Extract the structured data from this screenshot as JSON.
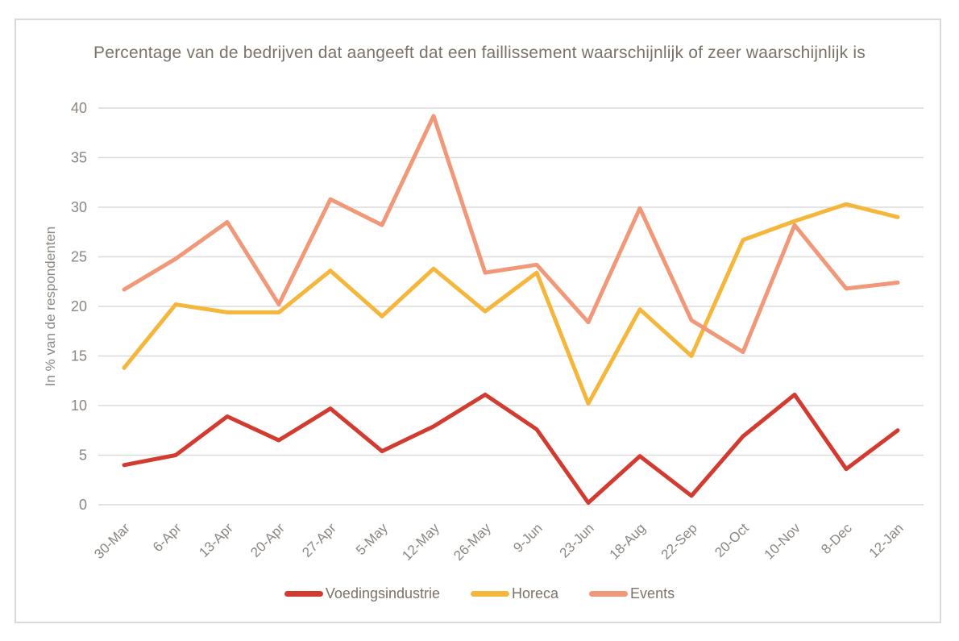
{
  "chart_data": {
    "type": "line",
    "title": "Percentage van de bedrijven dat aangeeft dat een faillissement waarschijnlijk of zeer waarschijnlijk is",
    "xlabel": "",
    "ylabel": "In % van de respondenten",
    "ylim": [
      0,
      40
    ],
    "yticks": [
      0,
      5,
      10,
      15,
      20,
      25,
      30,
      35,
      40
    ],
    "grid": true,
    "legend_position": "bottom",
    "categories": [
      "30-Mar",
      "6-Apr",
      "13-Apr",
      "20-Apr",
      "27-Apr",
      "5-May",
      "12-May",
      "26-May",
      "9-Jun",
      "23-Jun",
      "18-Aug",
      "22-Sep",
      "20-Oct",
      "10-Nov",
      "8-Dec",
      "12-Jan"
    ],
    "series": [
      {
        "name": "Voedingsindustrie",
        "color": "#d23b30",
        "values": [
          4.0,
          5.0,
          8.9,
          6.5,
          9.7,
          5.4,
          7.9,
          11.1,
          7.6,
          0.2,
          4.9,
          0.9,
          6.9,
          11.1,
          3.6,
          7.5
        ]
      },
      {
        "name": "Horeca",
        "color": "#f5b63c",
        "values": [
          13.8,
          20.2,
          19.4,
          19.4,
          23.6,
          19.0,
          23.8,
          19.5,
          23.4,
          10.2,
          19.7,
          15.0,
          26.7,
          28.6,
          30.3,
          29.0
        ]
      },
      {
        "name": "Events",
        "color": "#f09878",
        "values": [
          21.7,
          24.8,
          28.5,
          20.2,
          30.8,
          28.2,
          39.2,
          23.4,
          24.2,
          18.4,
          29.9,
          18.6,
          15.4,
          28.2,
          21.8,
          22.4
        ]
      }
    ],
    "style": {
      "grid_color": "#dcdcdc",
      "tick_label_color": "#8c8680",
      "title_color": "#7b7268",
      "line_width": 5
    }
  }
}
